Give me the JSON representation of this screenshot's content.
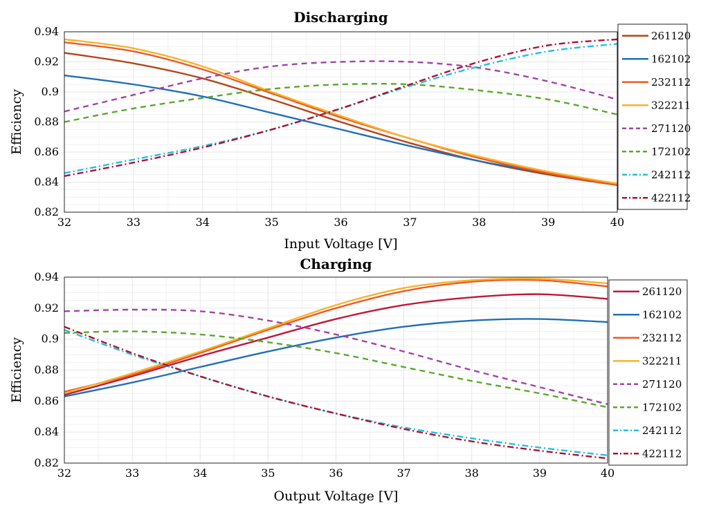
{
  "chart_data": [
    {
      "type": "line",
      "title": "Discharging",
      "xlabel": "Input Voltage [V]",
      "ylabel": "Efficiency",
      "xlim": [
        32,
        40
      ],
      "ylim": [
        0.82,
        0.94
      ],
      "xticks": [
        "32",
        "33",
        "34",
        "35",
        "36",
        "37",
        "38",
        "39",
        "40"
      ],
      "yticks": [
        "0.82",
        "0.84",
        "0.86",
        "0.88",
        "0.9",
        "0.92",
        "0.94"
      ],
      "grid": true,
      "legend_position": "outside-right",
      "x": [
        32,
        33,
        34,
        35,
        36,
        37,
        38,
        39,
        40
      ],
      "series": [
        {
          "name": "261120",
          "color": "#b5441a",
          "dash": "solid",
          "values": [
            0.926,
            0.919,
            0.909,
            0.895,
            0.88,
            0.866,
            0.854,
            0.845,
            0.838
          ]
        },
        {
          "name": "162102",
          "color": "#1f6fb8",
          "dash": "solid",
          "values": [
            0.911,
            0.905,
            0.897,
            0.886,
            0.875,
            0.864,
            0.854,
            0.846,
            0.838
          ]
        },
        {
          "name": "232112",
          "color": "#ee5a24",
          "dash": "solid",
          "values": [
            0.933,
            0.927,
            0.915,
            0.899,
            0.883,
            0.869,
            0.856,
            0.846,
            0.838
          ]
        },
        {
          "name": "322211",
          "color": "#f6b42c",
          "dash": "solid",
          "values": [
            0.935,
            0.929,
            0.917,
            0.9,
            0.884,
            0.869,
            0.857,
            0.847,
            0.839
          ]
        },
        {
          "name": "271120",
          "color": "#a044a8",
          "dash": "dash",
          "values": [
            0.887,
            0.898,
            0.909,
            0.917,
            0.92,
            0.92,
            0.916,
            0.907,
            0.895
          ]
        },
        {
          "name": "172102",
          "color": "#5aa82a",
          "dash": "dash",
          "values": [
            0.88,
            0.889,
            0.896,
            0.902,
            0.905,
            0.905,
            0.901,
            0.895,
            0.885
          ]
        },
        {
          "name": "242112",
          "color": "#22bfe0",
          "dash": "dashdot",
          "values": [
            0.846,
            0.855,
            0.864,
            0.875,
            0.889,
            0.904,
            0.917,
            0.927,
            0.932
          ]
        },
        {
          "name": "422112",
          "color": "#b0102e",
          "dash": "dashdot",
          "values": [
            0.844,
            0.853,
            0.863,
            0.875,
            0.889,
            0.905,
            0.92,
            0.931,
            0.935
          ]
        }
      ]
    },
    {
      "type": "line",
      "title": "Charging",
      "xlabel": "Output Voltage [V]",
      "ylabel": "Efficiency",
      "xlim": [
        32,
        40
      ],
      "ylim": [
        0.82,
        0.94
      ],
      "xticks": [
        "32",
        "33",
        "34",
        "35",
        "36",
        "37",
        "38",
        "39",
        "40"
      ],
      "yticks": [
        "0.82",
        "0.84",
        "0.86",
        "0.88",
        "0.9",
        "0.92",
        "0.94"
      ],
      "grid": true,
      "legend_position": "outside-right",
      "x": [
        32,
        33,
        34,
        35,
        36,
        37,
        38,
        39,
        40
      ],
      "series": [
        {
          "name": "261120",
          "color": "#c0163c",
          "dash": "solid",
          "values": [
            0.864,
            0.876,
            0.889,
            0.901,
            0.913,
            0.922,
            0.927,
            0.929,
            0.926
          ]
        },
        {
          "name": "162102",
          "color": "#1f6fb8",
          "dash": "solid",
          "values": [
            0.863,
            0.872,
            0.882,
            0.892,
            0.901,
            0.908,
            0.912,
            0.913,
            0.911
          ]
        },
        {
          "name": "232112",
          "color": "#ee5a24",
          "dash": "solid",
          "values": [
            0.866,
            0.877,
            0.891,
            0.906,
            0.92,
            0.931,
            0.937,
            0.938,
            0.934
          ]
        },
        {
          "name": "322211",
          "color": "#f6b42c",
          "dash": "solid",
          "values": [
            0.865,
            0.878,
            0.892,
            0.907,
            0.922,
            0.933,
            0.938,
            0.939,
            0.936
          ]
        },
        {
          "name": "271120",
          "color": "#a044a8",
          "dash": "dash",
          "values": [
            0.918,
            0.919,
            0.918,
            0.912,
            0.903,
            0.892,
            0.88,
            0.869,
            0.858
          ]
        },
        {
          "name": "172102",
          "color": "#5aa82a",
          "dash": "dash",
          "values": [
            0.904,
            0.905,
            0.903,
            0.898,
            0.891,
            0.882,
            0.873,
            0.865,
            0.856
          ]
        },
        {
          "name": "242112",
          "color": "#22bfe0",
          "dash": "dashdot",
          "values": [
            0.906,
            0.89,
            0.876,
            0.863,
            0.852,
            0.843,
            0.836,
            0.83,
            0.825
          ]
        },
        {
          "name": "422112",
          "color": "#b0102e",
          "dash": "dashdot",
          "values": [
            0.908,
            0.891,
            0.876,
            0.863,
            0.852,
            0.842,
            0.834,
            0.828,
            0.823
          ]
        }
      ]
    }
  ]
}
